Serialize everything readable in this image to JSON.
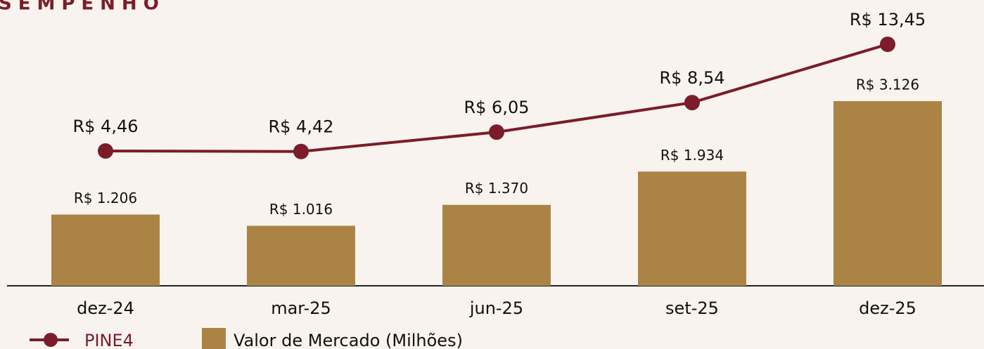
{
  "chart_data": {
    "type": "bar-line",
    "title": "SEMPENHO",
    "categories": [
      "dez-24",
      "mar-25",
      "jun-25",
      "set-25",
      "dez-25"
    ],
    "series": [
      {
        "name": "Valor de Mercado (Milhões)",
        "type": "bar",
        "color": "#ab8445",
        "axis": "y",
        "values": [
          1206,
          1016,
          1370,
          1934,
          3126
        ],
        "value_labels": [
          "R$ 1.206",
          "R$ 1.016",
          "R$ 1.370",
          "R$ 1.934",
          "R$ 3.126"
        ]
      },
      {
        "name": "PINE4",
        "type": "line",
        "color": "#7b1c2a",
        "axis": "y2",
        "values": [
          4.46,
          4.42,
          6.05,
          8.54,
          13.45
        ],
        "value_labels": [
          "R$ 4,46",
          "R$ 4,42",
          "R$ 6,05",
          "R$ 8,54",
          "R$ 13,45"
        ]
      }
    ],
    "ylim": [
      0,
      4600
    ],
    "y2lim": [
      -6.9,
      16
    ]
  }
}
